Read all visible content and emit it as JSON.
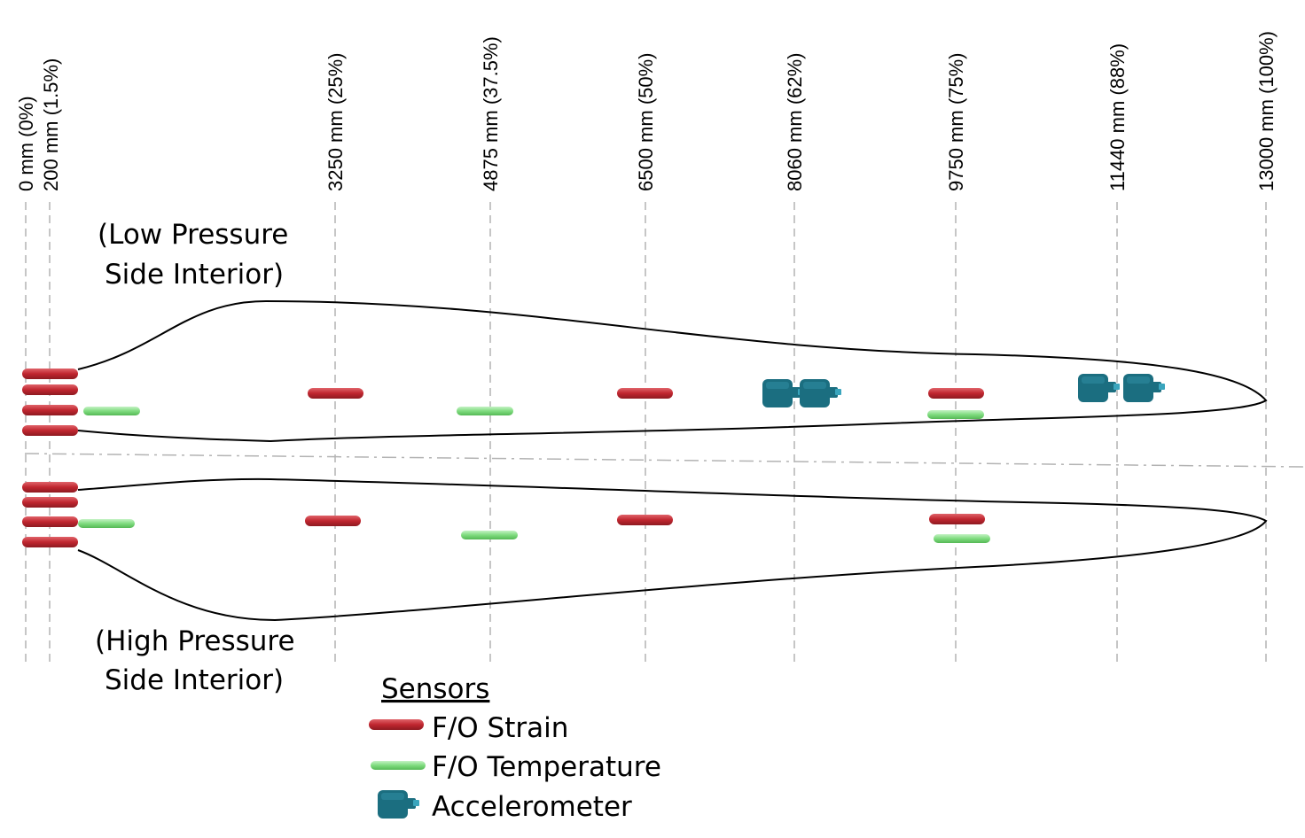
{
  "stations": [
    {
      "id": "s0",
      "label": "0 mm (0%)"
    },
    {
      "id": "s1",
      "label": "200 mm (1.5%)"
    },
    {
      "id": "s2",
      "label": "3250 mm (25%)"
    },
    {
      "id": "s3",
      "label": "4875 mm (37.5%)"
    },
    {
      "id": "s4",
      "label": "6500 mm (50%)"
    },
    {
      "id": "s5",
      "label": "8060 mm (62%)"
    },
    {
      "id": "s6",
      "label": "9750 mm (75%)"
    },
    {
      "id": "s7",
      "label": "11440 mm (88%)"
    },
    {
      "id": "s8",
      "label": "13000 mm (100%)"
    }
  ],
  "sides": {
    "low": {
      "line1": "(Low Pressure",
      "line2": "Side Interior)"
    },
    "high": {
      "line1": "(High Pressure",
      "line2": "Side Interior)"
    }
  },
  "legend": {
    "title": "Sensors",
    "items": [
      {
        "type": "strain",
        "label": "F/O Strain"
      },
      {
        "type": "temperature",
        "label": "F/O Temperature"
      },
      {
        "type": "accelerometer",
        "label": "Accelerometer"
      }
    ]
  },
  "colors": {
    "strain": "#c0262f",
    "temperature": "#7fdc7f",
    "accelerometer": "#1b6e80",
    "outline": "#000000",
    "guide": "#b3b3b3"
  }
}
